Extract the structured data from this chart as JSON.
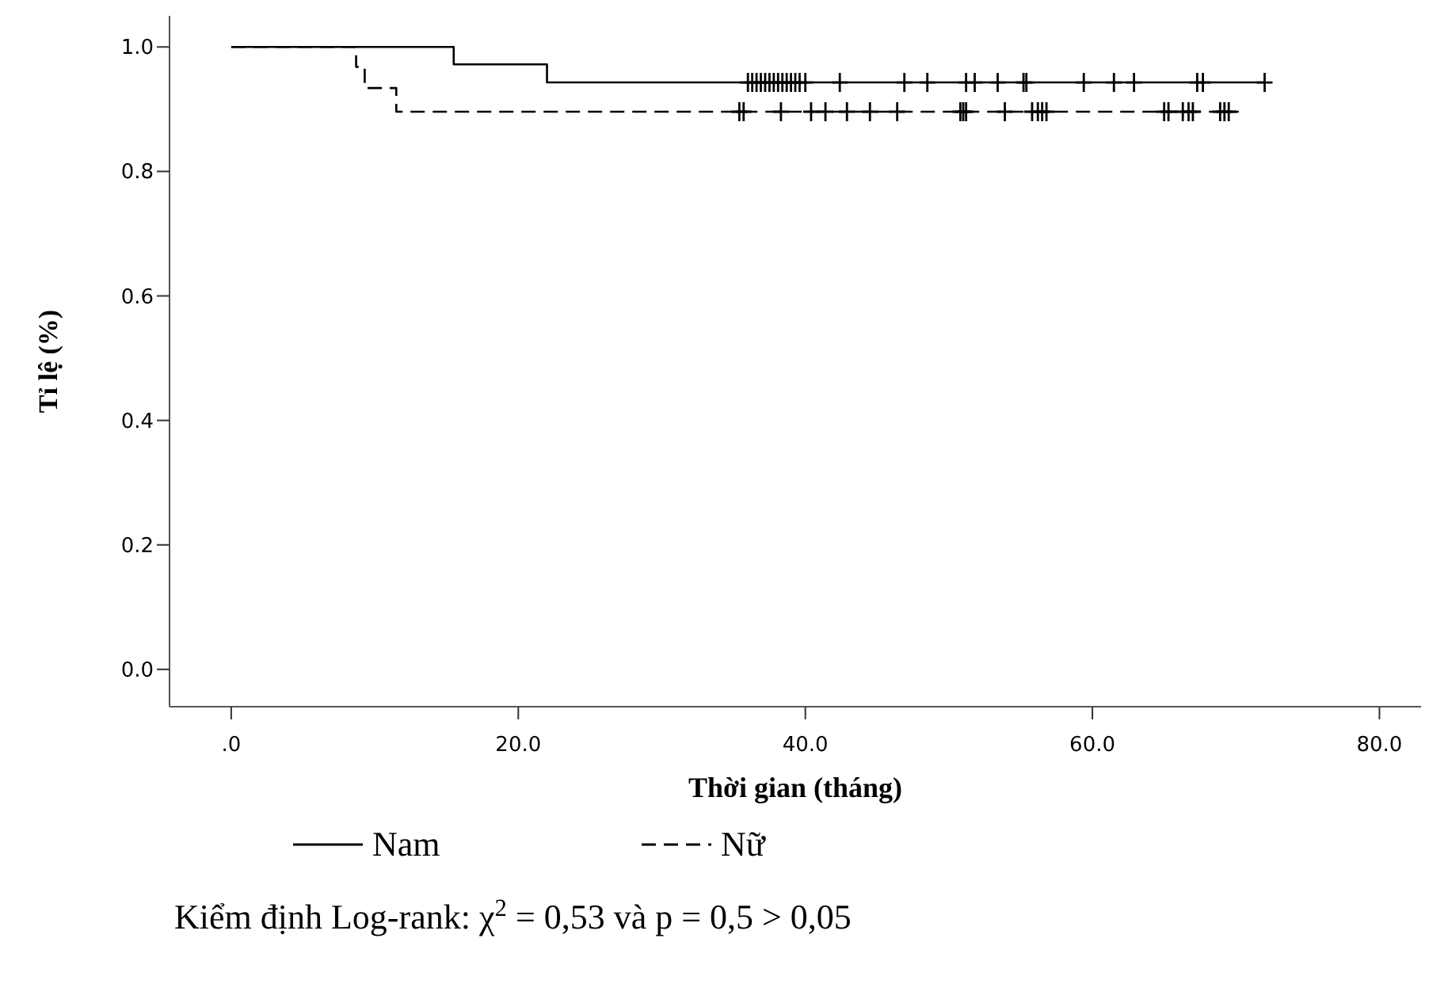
{
  "chart_data": {
    "type": "step",
    "xlabel": "Thời gian (tháng)",
    "ylabel": "Tỉ lệ (%)",
    "xlim": [
      -4.3,
      82.9
    ],
    "ylim": [
      -0.06,
      1.05
    ],
    "xticks": [
      {
        "value": 0,
        "label": ".0"
      },
      {
        "value": 20,
        "label": "20.0"
      },
      {
        "value": 40,
        "label": "40.0"
      },
      {
        "value": 60,
        "label": "60.0"
      },
      {
        "value": 80,
        "label": "80.0"
      }
    ],
    "yticks": [
      {
        "value": 0,
        "label": "0.0"
      },
      {
        "value": 0.2,
        "label": "0.2"
      },
      {
        "value": 0.4,
        "label": "0.4"
      },
      {
        "value": 0.6,
        "label": "0.6"
      },
      {
        "value": 0.8,
        "label": "0.8"
      },
      {
        "value": 1,
        "label": "1.0"
      }
    ],
    "legend": "bottom",
    "grid": false,
    "series": [
      {
        "name": "Nam",
        "color": "#000000",
        "line_style": "solid",
        "x": [
          0,
          15.5,
          22.0,
          72.0
        ],
        "values": [
          1,
          0.972,
          0.943,
          0.943
        ]
      },
      {
        "name": "Nữ",
        "color": "#000000",
        "line_style": "dashed",
        "x": [
          0,
          8.7,
          9.3,
          11.5,
          70.2
        ],
        "values": [
          1,
          0.968,
          0.934,
          0.896,
          0.896
        ]
      },
      {
        "type": "scatter",
        "color": "#000000",
        "marker": "cross",
        "x": [
          36.0,
          36.3,
          36.6,
          36.9,
          37.2,
          37.5,
          37.8,
          38.1,
          38.4,
          38.7,
          39.0,
          39.3,
          39.6,
          40.0,
          42.4,
          46.9,
          48.5,
          51.2,
          51.8,
          53.4,
          55.2,
          55.4,
          59.4,
          61.5,
          62.9,
          67.3,
          67.7,
          72.0
        ],
        "values": [
          0.943,
          0.943,
          0.943,
          0.943,
          0.943,
          0.943,
          0.943,
          0.943,
          0.943,
          0.943,
          0.943,
          0.943,
          0.943,
          0.943,
          0.943,
          0.943,
          0.943,
          0.943,
          0.943,
          0.943,
          0.943,
          0.943,
          0.943,
          0.943,
          0.943,
          0.943,
          0.943,
          0.943
        ]
      },
      {
        "type": "scatter",
        "color": "#000000",
        "marker": "cross",
        "x": [
          35.4,
          35.7,
          38.3,
          40.4,
          41.4,
          42.9,
          44.5,
          46.4,
          50.8,
          51.0,
          51.2,
          53.9,
          55.8,
          56.2,
          56.5,
          56.8,
          65.0,
          65.3,
          66.3,
          66.7,
          67.0,
          68.9,
          69.2,
          69.5
        ],
        "values": [
          0.896,
          0.896,
          0.896,
          0.896,
          0.896,
          0.896,
          0.896,
          0.896,
          0.896,
          0.896,
          0.896,
          0.896,
          0.896,
          0.896,
          0.896,
          0.896,
          0.896,
          0.896,
          0.896,
          0.896,
          0.896,
          0.896,
          0.896,
          0.896
        ]
      }
    ],
    "annotations": [
      "Kiểm định Log-rank: χ$^{2}$ = 0,53 và p = 0,5 > 0,05"
    ]
  }
}
